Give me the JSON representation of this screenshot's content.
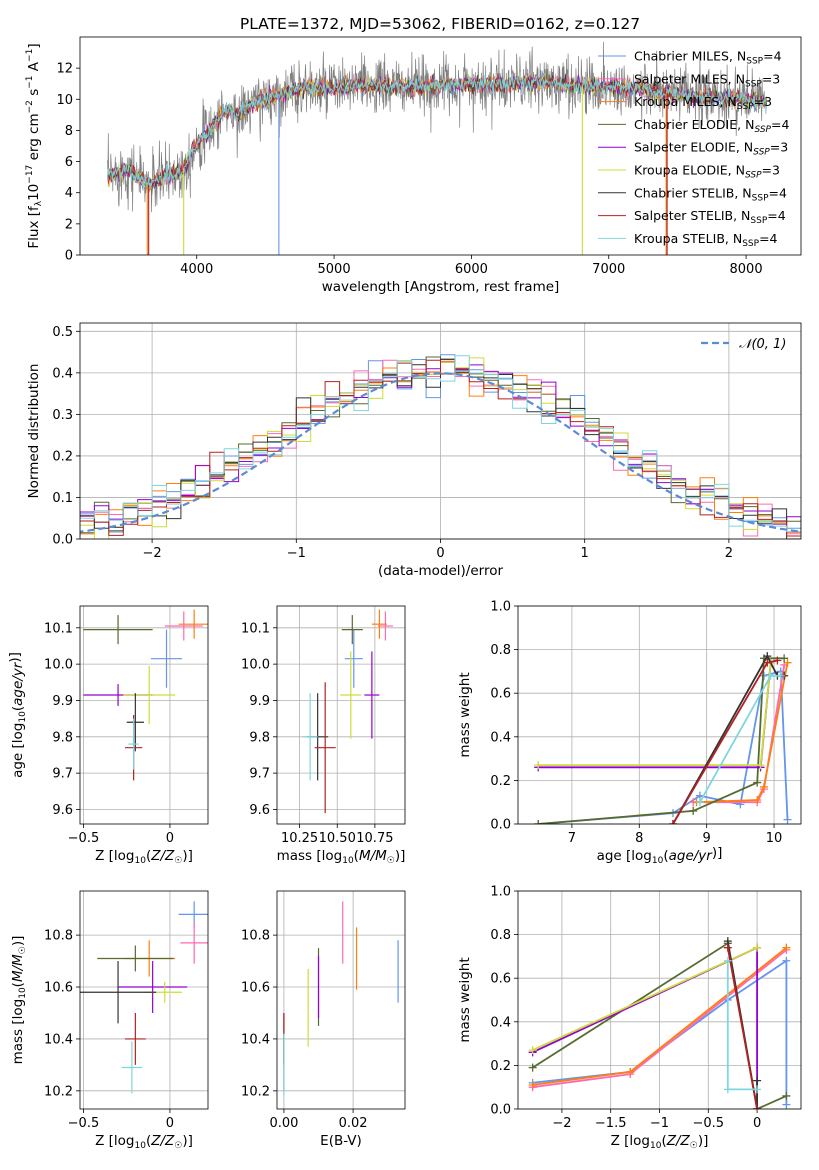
{
  "title": "PLATE=1372, MJD=53062, FIBERID=0162, z=0.127",
  "legend_text": {
    "normal_label": "𝒩(0, 1)"
  },
  "models": [
    {
      "imf": "Chabrier",
      "lib": "MILES",
      "n": "4",
      "color": "#6495ed"
    },
    {
      "imf": "Salpeter",
      "lib": "MILES",
      "n": "3",
      "color": "#ff69b4"
    },
    {
      "imf": "Kroupa",
      "lib": "MILES",
      "n": "3",
      "color": "#ff7f0e"
    },
    {
      "imf": "Chabrier",
      "lib": "ELODIE",
      "n": "4",
      "color": "#556b2f"
    },
    {
      "imf": "Salpeter",
      "lib": "ELODIE",
      "n": "3",
      "color": "#9400d3"
    },
    {
      "imf": "Kroupa",
      "lib": "ELODIE",
      "n": "3",
      "color": "#cddc39"
    },
    {
      "imf": "Chabrier",
      "lib": "STELIB",
      "n": "4",
      "color": "#333333"
    },
    {
      "imf": "Salpeter",
      "lib": "STELIB",
      "n": "4",
      "color": "#b22222"
    },
    {
      "imf": "Kroupa",
      "lib": "STELIB",
      "n": "4",
      "color": "#7fd6dc"
    }
  ],
  "chart_data": [
    {
      "type": "line",
      "id": "spectrum",
      "title": "PLATE=1372, MJD=53062, FIBERID=0162, z=0.127",
      "xlabel": "wavelength [Angstrom, rest frame]",
      "ylabel": "Flux [f_λ 10^-17 erg cm^-2 s^-1 A^-1]",
      "xlim": [
        3150,
        8400
      ],
      "ylim": [
        0,
        14
      ],
      "xticks": [
        4000,
        5000,
        6000,
        7000,
        8000
      ],
      "yticks": [
        0,
        2,
        4,
        6,
        8,
        10,
        12
      ],
      "grid": false,
      "legend": "right",
      "continuum": {
        "x": [
          3350,
          3500,
          3650,
          3800,
          3900,
          4000,
          4100,
          4200,
          4300,
          4400,
          4500,
          4600,
          4700,
          4800,
          4900,
          5000,
          5200,
          5400,
          5600,
          5800,
          6000,
          6200,
          6400,
          6600,
          6800,
          7000,
          7200,
          7400,
          7600,
          7800,
          8000,
          8150
        ],
        "y": [
          5.0,
          5.5,
          4.5,
          5.2,
          5.5,
          7.2,
          8.0,
          9.3,
          9.0,
          9.6,
          10.0,
          10.3,
          10.5,
          10.8,
          10.6,
          10.7,
          10.9,
          10.8,
          10.8,
          10.9,
          11.0,
          10.9,
          11.1,
          11.0,
          10.9,
          10.8,
          10.7,
          10.4,
          10.2,
          10.1,
          10.0,
          9.8
        ]
      },
      "model_ranges": [
        3350,
        8150
      ]
    },
    {
      "type": "step",
      "id": "residuals",
      "xlabel": "(data-model)/error",
      "ylabel": "Normed distribution",
      "xlim": [
        -2.5,
        2.5
      ],
      "ylim": [
        0,
        0.52
      ],
      "xticks": [
        -2,
        -1,
        0,
        1,
        2
      ],
      "yticks": [
        0.0,
        0.1,
        0.2,
        0.3,
        0.4,
        0.5
      ],
      "grid": true,
      "legend": "top-right",
      "bin_width": 0.1,
      "normal": {
        "mean": 0,
        "std": 1
      }
    },
    {
      "type": "errorbar",
      "id": "age_vs_Z",
      "xlabel": "Z [log10(Z/Z☉)]",
      "ylabel": "age [log10(age/yr)]",
      "xlim": [
        -0.52,
        0.22
      ],
      "ylim": [
        9.56,
        10.16
      ],
      "xticks": [
        -0.5,
        0.0
      ],
      "yticks": [
        9.6,
        9.7,
        9.8,
        9.9,
        10.0,
        10.1
      ],
      "grid": true,
      "points": [
        {
          "x": -0.02,
          "y": 10.015,
          "xerr": 0.09,
          "yerr": 0.08
        },
        {
          "x": 0.08,
          "y": 10.105,
          "xerr": 0.11,
          "yerr": 0.04
        },
        {
          "x": 0.14,
          "y": 10.11,
          "xerr": 0.09,
          "yerr": 0.04
        },
        {
          "x": -0.3,
          "y": 10.095,
          "xerr": 0.2,
          "yerr": 0.04
        },
        {
          "x": -0.3,
          "y": 9.915,
          "xerr": 0.2,
          "yerr": 0.03
        },
        {
          "x": -0.12,
          "y": 9.915,
          "xerr": 0.15,
          "yerr": 0.08
        },
        {
          "x": -0.2,
          "y": 9.84,
          "xerr": 0.05,
          "yerr": 0.08
        },
        {
          "x": -0.21,
          "y": 9.77,
          "xerr": 0.05,
          "yerr": 0.09
        },
        {
          "x": -0.21,
          "y": 9.78,
          "xerr": 0.03,
          "yerr": 0.07
        }
      ]
    },
    {
      "type": "errorbar",
      "id": "age_vs_mass",
      "xlabel": "mass [log10(M/M☉)]",
      "ylabel": "",
      "xlim": [
        10.1,
        10.95
      ],
      "ylim": [
        9.56,
        10.16
      ],
      "xticks": [
        10.25,
        10.5,
        10.75
      ],
      "xtick_labels": [
        "10.25",
        "10.50",
        "10.75"
      ],
      "yticks": [
        9.6,
        9.7,
        9.8,
        9.9,
        10.0,
        10.1
      ],
      "grid": true,
      "points": [
        {
          "x": 10.61,
          "y": 10.015,
          "xerr": 0.06,
          "yerr": 0.08
        },
        {
          "x": 10.82,
          "y": 10.105,
          "xerr": 0.05,
          "yerr": 0.04
        },
        {
          "x": 10.78,
          "y": 10.11,
          "xerr": 0.05,
          "yerr": 0.04
        },
        {
          "x": 10.6,
          "y": 10.095,
          "xerr": 0.07,
          "yerr": 0.04
        },
        {
          "x": 10.73,
          "y": 9.915,
          "xerr": 0.05,
          "yerr": 0.12
        },
        {
          "x": 10.59,
          "y": 9.915,
          "xerr": 0.07,
          "yerr": 0.12
        },
        {
          "x": 10.37,
          "y": 9.8,
          "xerr": 0.07,
          "yerr": 0.12
        },
        {
          "x": 10.42,
          "y": 9.77,
          "xerr": 0.07,
          "yerr": 0.18
        },
        {
          "x": 10.32,
          "y": 9.8,
          "xerr": 0.05,
          "yerr": 0.12
        }
      ]
    },
    {
      "type": "line",
      "id": "massweight_vs_age",
      "xlabel": "age [log10(age/yr)]",
      "ylabel": "mass weight",
      "xlim": [
        6.2,
        10.4
      ],
      "ylim": [
        0,
        1
      ],
      "xticks": [
        7,
        8,
        9,
        10
      ],
      "yticks": [
        0.0,
        0.2,
        0.4,
        0.6,
        0.8,
        1.0
      ],
      "grid": true,
      "series": [
        {
          "x": [
            6.5,
            8.5,
            8.9,
            9.5,
            9.85,
            10.1,
            10.2
          ],
          "y": [
            0.0,
            0.05,
            0.13,
            0.09,
            0.68,
            0.7,
            0.02
          ]
        },
        {
          "x": [
            8.8,
            9.75,
            9.85,
            10.15
          ],
          "y": [
            0.1,
            0.1,
            0.16,
            0.73
          ]
        },
        {
          "x": [
            8.85,
            9.75,
            9.85,
            10.2
          ],
          "y": [
            0.1,
            0.11,
            0.17,
            0.74
          ]
        },
        {
          "x": [
            6.5,
            8.8,
            9.75,
            9.85,
            10.15
          ],
          "y": [
            0.0,
            0.06,
            0.19,
            0.76,
            0.76
          ]
        },
        {
          "x": [
            6.5,
            9.8,
            9.95
          ],
          "y": [
            0.26,
            0.26,
            0.74
          ]
        },
        {
          "x": [
            6.5,
            9.8,
            9.95
          ],
          "y": [
            0.27,
            0.27,
            0.74
          ]
        },
        {
          "x": [
            8.5,
            9.9,
            10.05,
            10.15
          ],
          "y": [
            0.0,
            0.77,
            0.68,
            0.68
          ]
        },
        {
          "x": [
            8.5,
            9.9,
            10.05
          ],
          "y": [
            0.0,
            0.74,
            0.75
          ]
        },
        {
          "x": [
            8.9,
            9.95,
            10.1
          ],
          "y": [
            0.1,
            0.68,
            0.68
          ]
        }
      ]
    },
    {
      "type": "errorbar",
      "id": "mass_vs_Z",
      "xlabel": "Z [log10(Z/Z☉)]",
      "ylabel": "mass [log10(M/M☉)]",
      "xlim": [
        -0.52,
        0.22
      ],
      "ylim": [
        10.13,
        10.97
      ],
      "xticks": [
        -0.5,
        0.0
      ],
      "yticks": [
        10.2,
        10.4,
        10.6,
        10.8
      ],
      "grid": true,
      "points": [
        {
          "x": 0.14,
          "y": 10.88,
          "xerr": 0.09,
          "yerr": 0.05
        },
        {
          "x": 0.14,
          "y": 10.77,
          "xerr": 0.08,
          "yerr": 0.08
        },
        {
          "x": -0.12,
          "y": 10.71,
          "xerr": 0.15,
          "yerr": 0.07
        },
        {
          "x": -0.2,
          "y": 10.71,
          "xerr": 0.22,
          "yerr": 0.05
        },
        {
          "x": -0.1,
          "y": 10.6,
          "xerr": 0.2,
          "yerr": 0.1
        },
        {
          "x": -0.03,
          "y": 10.58,
          "xerr": 0.1,
          "yerr": 0.04
        },
        {
          "x": -0.3,
          "y": 10.58,
          "xerr": 0.22,
          "yerr": 0.12
        },
        {
          "x": -0.2,
          "y": 10.4,
          "xerr": 0.06,
          "yerr": 0.1
        },
        {
          "x": -0.22,
          "y": 10.29,
          "xerr": 0.06,
          "yerr": 0.1
        }
      ]
    },
    {
      "type": "errorbar",
      "id": "mass_vs_ebv",
      "xlabel": "E(B-V)",
      "ylabel": "",
      "xlim": [
        -0.002,
        0.035
      ],
      "ylim": [
        10.13,
        10.97
      ],
      "xticks": [
        0.0,
        0.02
      ],
      "xtick_labels": [
        "0.00",
        "0.02"
      ],
      "yticks": [
        10.2,
        10.4,
        10.6,
        10.8
      ],
      "grid": true,
      "points": [
        {
          "x": 0.033,
          "y": 10.66,
          "xerr": 0,
          "yerr": 0.12
        },
        {
          "x": 0.017,
          "y": 10.81,
          "xerr": 0,
          "yerr": 0.12
        },
        {
          "x": 0.021,
          "y": 10.71,
          "xerr": 0,
          "yerr": 0.12
        },
        {
          "x": 0.01,
          "y": 10.6,
          "xerr": 0,
          "yerr": 0.15
        },
        {
          "x": 0.01,
          "y": 10.6,
          "xerr": 0,
          "yerr": 0.12
        },
        {
          "x": 0.007,
          "y": 10.52,
          "xerr": 0,
          "yerr": 0.15
        },
        {
          "x": 0.0,
          "y": 10.4,
          "xerr": 0,
          "yerr": 0.1
        },
        {
          "x": 0.0,
          "y": 10.35,
          "xerr": 0,
          "yerr": 0.15
        },
        {
          "x": 0.0,
          "y": 10.3,
          "xerr": 0,
          "yerr": 0.12
        }
      ]
    },
    {
      "type": "line",
      "id": "massweight_vs_Z",
      "xlabel": "Z [log10(Z/Z☉)]",
      "ylabel": "mass weight",
      "xlim": [
        -2.45,
        0.45
      ],
      "ylim": [
        0,
        1
      ],
      "xticks": [
        -2.0,
        -1.5,
        -1.0,
        -0.5,
        0.0
      ],
      "yticks": [
        0.0,
        0.2,
        0.4,
        0.6,
        0.8,
        1.0
      ],
      "grid": true,
      "series": [
        {
          "x": [
            -2.3,
            -1.3,
            -0.3,
            0.3,
            0.3
          ],
          "y": [
            0.12,
            0.17,
            0.5,
            0.68,
            0.02
          ]
        },
        {
          "x": [
            -2.3,
            -1.3,
            0.3
          ],
          "y": [
            0.1,
            0.16,
            0.73
          ]
        },
        {
          "x": [
            -2.3,
            -1.3,
            0.3
          ],
          "y": [
            0.11,
            0.17,
            0.74
          ]
        },
        {
          "x": [
            -2.3,
            -0.3,
            0.0,
            0.3
          ],
          "y": [
            0.19,
            0.76,
            0.0,
            0.06
          ]
        },
        {
          "x": [
            -2.3,
            0.0,
            0.0
          ],
          "y": [
            0.26,
            0.74,
            0.0
          ]
        },
        {
          "x": [
            -2.3,
            0.0
          ],
          "y": [
            0.27,
            0.74
          ]
        },
        {
          "x": [
            -0.3,
            0.0,
            0.0
          ],
          "y": [
            0.77,
            0.0,
            0.13
          ]
        },
        {
          "x": [
            -0.3,
            0.0
          ],
          "y": [
            0.74,
            0.0
          ]
        },
        {
          "x": [
            -0.3,
            -0.3,
            0.0
          ],
          "y": [
            0.68,
            0.09,
            0.09
          ]
        }
      ]
    }
  ]
}
